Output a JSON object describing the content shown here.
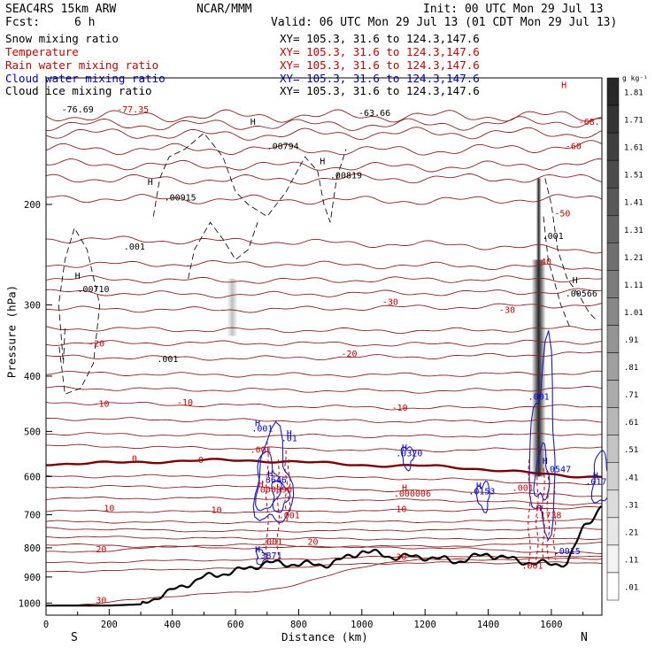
{
  "header": {
    "model": "SEAC4RS 15km ARW",
    "org": "NCAR/MMM",
    "init": "Init: 00 UTC Mon 29 Jul 13",
    "fcst_label": "Fcst:",
    "fcst_value": "6 h",
    "valid": "Valid: 06 UTC Mon 29 Jul 13 (01 CDT Mon 29 Jul 13)"
  },
  "legend": [
    {
      "label": "Snow mixing ratio",
      "color": "#000000",
      "xy": "XY= 105.3, 31.6 to 124.3,147.6"
    },
    {
      "label": "Temperature",
      "color": "#cc0000",
      "xy": "XY= 105.3, 31.6 to 124.3,147.6"
    },
    {
      "label": "Rain water mixing ratio",
      "color": "#cc0000",
      "xy": "XY= 105.3, 31.6 to 124.3,147.6"
    },
    {
      "label": "Cloud water mixing ratio",
      "color": "#0000cc",
      "xy": "XY= 105.3, 31.6 to 124.3,147.6"
    },
    {
      "label": "Cloud ice mixing ratio",
      "color": "#000000",
      "xy": "XY= 105.3, 31.6 to 124.3,147.6"
    }
  ],
  "colorbar": {
    "unit": "g kg⁻¹",
    "labels": [
      "1.81",
      "1.71",
      "1.61",
      "1.51",
      "1.41",
      "1.31",
      "1.21",
      "1.11",
      "1.01",
      ".91",
      ".81",
      ".71",
      ".61",
      ".51",
      ".41",
      ".31",
      ".21",
      ".11",
      ".01"
    ]
  },
  "chart_data": {
    "type": "contour_cross_section",
    "xlabel": "Distance (km)",
    "ylabel": "Pressure (hPa)",
    "xlim": [
      0,
      1760
    ],
    "ylim": [
      1050,
      120
    ],
    "x_ticks": [
      "0",
      "200",
      "400",
      "600",
      "800",
      "1000",
      "1200",
      "1400",
      "1600"
    ],
    "x_tick_values": [
      0,
      200,
      400,
      600,
      800,
      1000,
      1200,
      1400,
      1600
    ],
    "y_ticks": [
      "200",
      "300",
      "400",
      "500",
      "600",
      "700",
      "800",
      "900",
      "1000"
    ],
    "y_tick_values": [
      200,
      300,
      400,
      500,
      600,
      700,
      800,
      900,
      1000
    ],
    "end_labels": {
      "left": "S",
      "right": "N"
    },
    "temperature_contours": [
      {
        "value": -70,
        "p": [
          140,
          140,
          140,
          140
        ]
      },
      {
        "value": -68,
        "p": [
          145,
          145,
          145,
          143
        ]
      },
      {
        "value": -60,
        "p": [
          160,
          160,
          161,
          158
        ]
      },
      {
        "value": -50,
        "p": [
          180,
          181,
          180,
          180
        ]
      },
      {
        "value": -40,
        "p": [
          230,
          232,
          235,
          240
        ]
      },
      {
        "value": -30,
        "p": [
          305,
          306,
          303,
          300
        ]
      },
      {
        "value": -20,
        "p": [
          370,
          372,
          370,
          365
        ]
      },
      {
        "value": -10,
        "p": [
          445,
          450,
          455,
          452
        ]
      },
      {
        "value": 0,
        "p": [
          570,
          562,
          575,
          600
        ]
      },
      {
        "value": 10,
        "p": [
          690,
          692,
          688,
          680
        ]
      },
      {
        "value": 20,
        "p": [
          815,
          790,
          800,
          818
        ]
      },
      {
        "value": 30,
        "p": [
          1010,
          960,
          840,
          835
        ]
      }
    ],
    "terrain_km": [
      0,
      100,
      200,
      300,
      400,
      500,
      600,
      700,
      800,
      900,
      1000,
      1100,
      1200,
      1300,
      1400,
      1500,
      1600,
      1650,
      1700,
      1740
    ],
    "terrain_p": [
      1010,
      1010,
      1010,
      1005,
      950,
      900,
      880,
      850,
      855,
      855,
      810,
      830,
      830,
      845,
      820,
      845,
      855,
      850,
      740,
      695
    ],
    "labels": [
      {
        "text": "-77.35",
        "color": "#cc0000",
        "x": 275,
        "p": 138
      },
      {
        "text": "-76.69",
        "color": "#000000",
        "x": 100,
        "p": 138
      },
      {
        "text": "-63.66",
        "color": "#000000",
        "x": 1040,
        "p": 140
      },
      {
        "text": "-68.",
        "color": "#cc0000",
        "x": 1720,
        "p": 145
      },
      {
        "text": "-60",
        "color": "#cc0000",
        "x": 1670,
        "p": 160
      },
      {
        "text": "-50",
        "color": "#cc0000",
        "x": 1635,
        "p": 210
      },
      {
        "text": "-40",
        "color": "#cc0000",
        "x": 1575,
        "p": 255
      },
      {
        "text": "-30",
        "color": "#cc0000",
        "x": 1090,
        "p": 300
      },
      {
        "text": "-30",
        "color": "#cc0000",
        "x": 1460,
        "p": 310
      },
      {
        "text": "-20",
        "color": "#cc0000",
        "x": 960,
        "p": 370
      },
      {
        "text": "-20",
        "color": "#cc0000",
        "x": 160,
        "p": 355
      },
      {
        "text": "-10",
        "color": "#cc0000",
        "x": 440,
        "p": 450
      },
      {
        "text": "-10",
        "color": "#cc0000",
        "x": 175,
        "p": 453
      },
      {
        "text": "-10",
        "color": "#cc0000",
        "x": 1120,
        "p": 460
      },
      {
        "text": "0",
        "color": "#cc0000",
        "x": 280,
        "p": 565
      },
      {
        "text": "0",
        "color": "#cc0000",
        "x": 490,
        "p": 568
      },
      {
        "text": "10",
        "color": "#cc0000",
        "x": 200,
        "p": 690
      },
      {
        "text": "10",
        "color": "#cc0000",
        "x": 540,
        "p": 695
      },
      {
        "text": "10",
        "color": "#cc0000",
        "x": 1125,
        "p": 693
      },
      {
        "text": "20",
        "color": "#cc0000",
        "x": 175,
        "p": 815
      },
      {
        "text": "20",
        "color": "#cc0000",
        "x": 845,
        "p": 790
      },
      {
        "text": "30",
        "color": "#cc0000",
        "x": 175,
        "p": 1000
      },
      {
        "text": "30",
        "color": "#cc0000",
        "x": 1125,
        "p": 840
      },
      {
        "text": ".00794",
        "color": "#000000",
        "x": 750,
        "p": 160
      },
      {
        "text": ".00915",
        "color": "#000000",
        "x": 425,
        "p": 197
      },
      {
        "text": ".00819",
        "color": "#000000",
        "x": 950,
        "p": 180
      },
      {
        "text": ".00710",
        "color": "#000000",
        "x": 150,
        "p": 285
      },
      {
        "text": ".001",
        "color": "#000000",
        "x": 280,
        "p": 240
      },
      {
        "text": ".001",
        "color": "#000000",
        "x": 385,
        "p": 378
      },
      {
        "text": ".001",
        "color": "#000000",
        "x": 1605,
        "p": 230
      },
      {
        "text": ".00566",
        "color": "#000000",
        "x": 1695,
        "p": 290
      },
      {
        "text": ".001",
        "color": "#0000cc",
        "x": 685,
        "p": 500
      },
      {
        "text": ".01",
        "color": "#0000cc",
        "x": 770,
        "p": 520
      },
      {
        "text": ".0320",
        "color": "#0000cc",
        "x": 1150,
        "p": 553
      },
      {
        "text": ".3646",
        "color": "#0000cc",
        "x": 720,
        "p": 615
      },
      {
        "text": ".0153",
        "color": "#0000cc",
        "x": 1380,
        "p": 645
      },
      {
        "text": ".001",
        "color": "#0000cc",
        "x": 1560,
        "p": 440
      },
      {
        "text": ".0547",
        "color": "#0000cc",
        "x": 1620,
        "p": 590
      },
      {
        "text": ".0172",
        "color": "#0000cc",
        "x": 1750,
        "p": 620
      },
      {
        "text": ".0015",
        "color": "#0000cc",
        "x": 1650,
        "p": 820
      },
      {
        "text": ".3871",
        "color": "#0000cc",
        "x": 705,
        "p": 835
      },
      {
        "text": ".001",
        "color": "#cc0000",
        "x": 680,
        "p": 545
      },
      {
        "text": ".000990",
        "color": "#cc0000",
        "x": 720,
        "p": 640
      },
      {
        "text": ".001",
        "color": "#cc0000",
        "x": 770,
        "p": 710
      },
      {
        "text": ".001",
        "color": "#cc0000",
        "x": 715,
        "p": 790
      },
      {
        "text": ".000006",
        "color": "#cc0000",
        "x": 1160,
        "p": 650
      },
      {
        "text": ".001",
        "color": "#cc0000",
        "x": 1510,
        "p": 635
      },
      {
        "text": ".001",
        "color": "#cc0000",
        "x": 1540,
        "p": 870
      },
      {
        "text": ".1738",
        "color": "#cc0000",
        "x": 1590,
        "p": 710
      }
    ],
    "H_markers": [
      {
        "x": 670,
        "p": 490,
        "color": "#0000cc"
      },
      {
        "x": 770,
        "p": 510,
        "color": "#0000cc"
      },
      {
        "x": 1135,
        "p": 540,
        "color": "#0000cc"
      },
      {
        "x": 710,
        "p": 600,
        "color": "#0000cc"
      },
      {
        "x": 1370,
        "p": 630,
        "color": "#0000cc"
      },
      {
        "x": 1580,
        "p": 570,
        "color": "#0000cc"
      },
      {
        "x": 1740,
        "p": 605,
        "color": "#0000cc"
      },
      {
        "x": 670,
        "p": 815,
        "color": "#0000cc"
      },
      {
        "x": 680,
        "p": 625,
        "color": "#cc0000"
      },
      {
        "x": 1135,
        "p": 635,
        "color": "#cc0000"
      },
      {
        "x": 1560,
        "p": 690,
        "color": "#cc0000"
      },
      {
        "x": 330,
        "p": 185,
        "color": "#000000"
      },
      {
        "x": 655,
        "p": 145,
        "color": "#000000"
      },
      {
        "x": 875,
        "p": 170,
        "color": "#000000"
      },
      {
        "x": 100,
        "p": 270,
        "color": "#000000"
      },
      {
        "x": 1675,
        "p": 275,
        "color": "#000000"
      },
      {
        "x": 1640,
        "p": 125,
        "color": "#cc0000"
      }
    ],
    "grid": false
  }
}
